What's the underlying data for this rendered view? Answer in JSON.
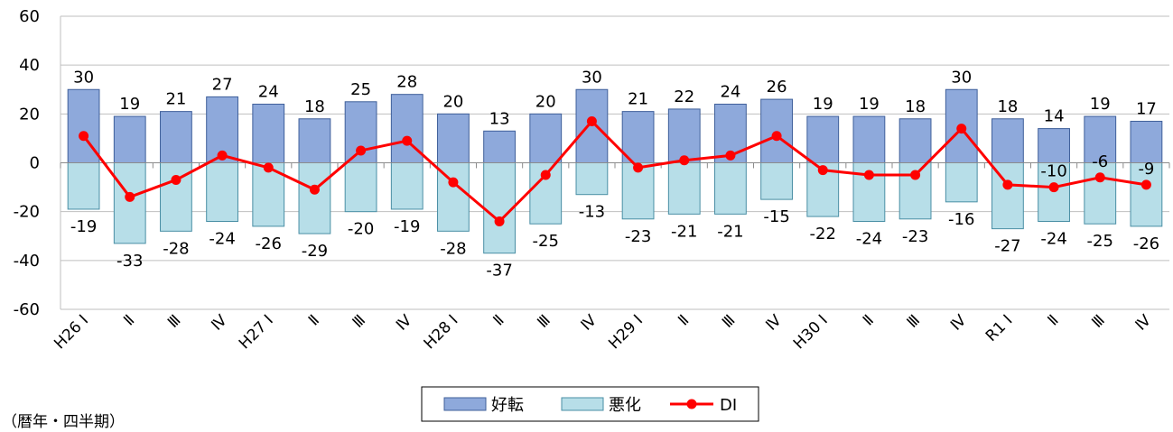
{
  "chart_data": {
    "type": "bar",
    "categories": [
      "H26 Ⅰ",
      "Ⅱ",
      "Ⅲ",
      "Ⅳ",
      "H27 Ⅰ",
      "Ⅱ",
      "Ⅲ",
      "Ⅳ",
      "H28 Ⅰ",
      "Ⅱ",
      "Ⅲ",
      "Ⅳ",
      "H29 Ⅰ",
      "Ⅱ",
      "Ⅲ",
      "Ⅳ",
      "H30 Ⅰ",
      "Ⅱ",
      "Ⅲ",
      "Ⅳ",
      "R1 Ⅰ",
      "Ⅱ",
      "Ⅲ",
      "Ⅳ"
    ],
    "series": [
      {
        "name": "好転",
        "type": "bar",
        "color": "#8EA9DB",
        "values": [
          30,
          19,
          21,
          27,
          24,
          18,
          25,
          28,
          20,
          13,
          20,
          30,
          21,
          22,
          24,
          26,
          19,
          19,
          18,
          30,
          18,
          14,
          19,
          17
        ]
      },
      {
        "name": "悪化",
        "type": "bar",
        "color": "#B7DEE8",
        "values": [
          -19,
          -33,
          -28,
          -24,
          -26,
          -29,
          -20,
          -19,
          -28,
          -37,
          -25,
          -13,
          -23,
          -21,
          -21,
          -15,
          -22,
          -24,
          -23,
          -16,
          -27,
          -24,
          -25,
          -26
        ]
      },
      {
        "name": "DI",
        "type": "line",
        "color": "#FF0000",
        "values": [
          11,
          -14,
          -7,
          3,
          -2,
          -11,
          5,
          9,
          -8,
          -24,
          -5,
          17,
          -2,
          1,
          3,
          11,
          -3,
          -5,
          -5,
          14,
          -9,
          -10,
          -6,
          -9
        ]
      }
    ],
    "di_labels": {
      "21": "-10",
      "22": "-6",
      "23": "-9"
    },
    "ylim": [
      -60,
      60
    ],
    "yticks": [
      60,
      40,
      20,
      0,
      -20,
      -40,
      -60
    ],
    "xlabel": "（暦年・四半期）",
    "legend_position": "bottom-center",
    "grid": "horizontal"
  }
}
